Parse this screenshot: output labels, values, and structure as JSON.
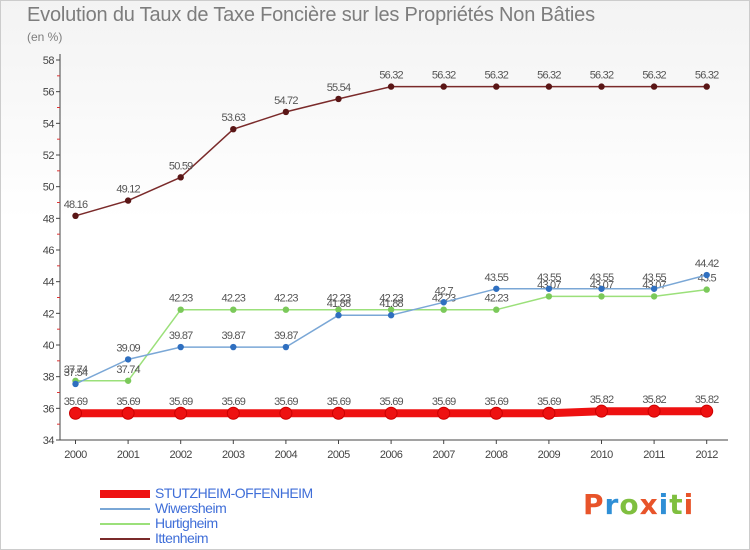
{
  "title": "Evolution du Taux de Taxe Foncière sur les Propriétés Non Bâties",
  "subtitle": "(en %)",
  "brand": {
    "text": "Proxiti",
    "colors": [
      "#e8542a",
      "#2f8fd6",
      "#7fbf3f",
      "#e8542a",
      "#2f8fd6",
      "#7fbf3f",
      "#e8542a"
    ]
  },
  "chart_data": {
    "type": "line",
    "title": "Evolution du Taux de Taxe Foncière sur les Propriétés Non Bâties",
    "ylabel": "(en %)",
    "x": [
      "2000",
      "2001",
      "2002",
      "2003",
      "2004",
      "2005",
      "2006",
      "2007",
      "2008",
      "2009",
      "2010",
      "2011",
      "2012"
    ],
    "ylim": [
      34,
      58
    ],
    "yticks": [
      "34",
      "36",
      "38",
      "40",
      "42",
      "44",
      "46",
      "48",
      "50",
      "52",
      "54",
      "56",
      "58"
    ],
    "grid": false,
    "legend_position": "bottom-left",
    "series": [
      {
        "name": "STUTZHEIM-OFFENHEIM",
        "color": "#ee1111",
        "marker": "#ee1111",
        "values": [
          35.69,
          35.69,
          35.69,
          35.69,
          35.69,
          35.69,
          35.69,
          35.69,
          35.69,
          35.69,
          35.82,
          35.82,
          35.82
        ],
        "labels": [
          "35.69",
          "35.69",
          "35.69",
          "35.69",
          "35.69",
          "35.69",
          "35.69",
          "35.69",
          "35.69",
          "35.69",
          "35.82",
          "35.82",
          "35.82"
        ]
      },
      {
        "name": "Wiwersheim",
        "color": "#7aa7d6",
        "marker": "#2f6fc0",
        "values": [
          37.54,
          39.09,
          39.87,
          39.87,
          39.87,
          41.88,
          41.88,
          42.7,
          43.55,
          43.55,
          43.55,
          43.55,
          44.42
        ],
        "labels": [
          "37.54",
          "39.09",
          "39.87",
          "39.87",
          "39.87",
          "41.88",
          "41.88",
          "42.7",
          "43.55",
          "43.55",
          "43.55",
          "43.55",
          "44.42"
        ]
      },
      {
        "name": "Hurtigheim",
        "color": "#9be07a",
        "marker": "#7bc95a",
        "values": [
          37.74,
          37.74,
          42.23,
          42.23,
          42.23,
          42.23,
          42.23,
          42.23,
          42.23,
          43.07,
          43.07,
          43.07,
          43.5
        ],
        "labels": [
          "37.74",
          "37.74",
          "42.23",
          "42.23",
          "42.23",
          "42.23",
          "42.23",
          "42.23",
          "42.23",
          "43.07",
          "43.07",
          "43.07",
          "43.5"
        ]
      },
      {
        "name": "Ittenheim",
        "color": "#7a2a2a",
        "marker": "#5a1616",
        "values": [
          48.16,
          49.12,
          50.59,
          53.63,
          54.72,
          55.54,
          56.32,
          56.32,
          56.32,
          56.32,
          56.32,
          56.32,
          56.32
        ],
        "labels": [
          "48.16",
          "49.12",
          "50.59",
          "53.63",
          "54.72",
          "55.54",
          "56.32",
          "56.32",
          "56.32",
          "56.32",
          "56.32",
          "56.32",
          "56.32"
        ]
      }
    ]
  }
}
